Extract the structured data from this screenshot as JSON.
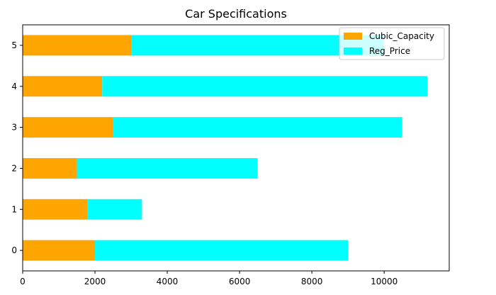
{
  "chart_data": {
    "type": "bar",
    "orientation": "horizontal",
    "stacked": true,
    "title": "Car Specifications",
    "categories": [
      "0",
      "1",
      "2",
      "3",
      "4",
      "5"
    ],
    "series": [
      {
        "name": "Cubic_Capacity",
        "color": "#ffa500",
        "values": [
          2000,
          1800,
          1500,
          2500,
          2200,
          3000
        ]
      },
      {
        "name": "Reg_Price",
        "color": "#00ffff",
        "values": [
          7000,
          1500,
          5000,
          8000,
          9000,
          7000
        ]
      }
    ],
    "xlim": [
      0,
      11800
    ],
    "xticks": [
      0,
      2000,
      4000,
      6000,
      8000,
      10000
    ],
    "xlabel": "",
    "ylabel": "",
    "grid": false,
    "legend_position": "top-right"
  }
}
